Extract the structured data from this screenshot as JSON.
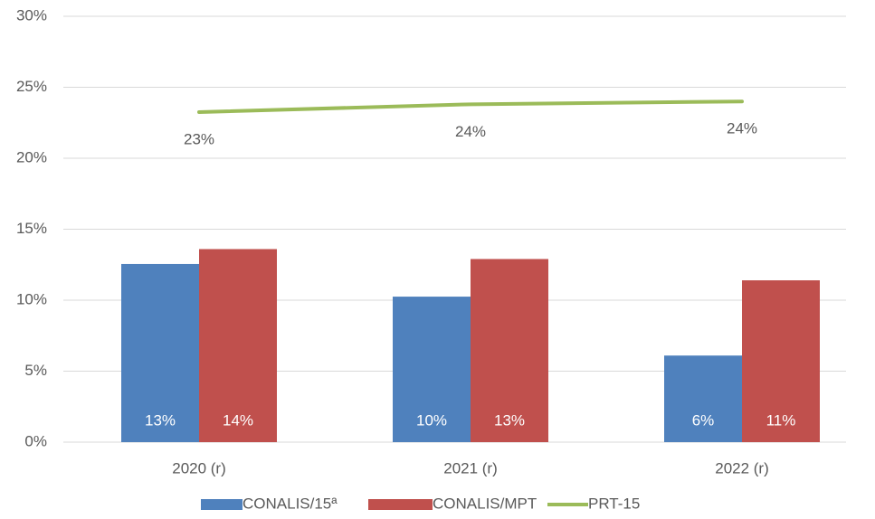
{
  "chart_data": {
    "type": "bar",
    "categories": [
      "2020 (r)",
      "2021 (r)",
      "2022 (r)"
    ],
    "series": [
      {
        "name": "CONALIS/15ª",
        "color": "#4f81bd",
        "values": [
          12.55,
          10.25,
          6.1
        ],
        "value_labels": [
          "13%",
          "10%",
          "6%"
        ]
      },
      {
        "name": "CONALIS/MPT",
        "color": "#c0504d",
        "values": [
          13.6,
          12.9,
          11.4
        ],
        "value_labels": [
          "14%",
          "13%",
          "11%"
        ]
      },
      {
        "name": "PRT-15",
        "color": "#9bbb59",
        "type": "line",
        "values": [
          23.25,
          23.8,
          24.0
        ],
        "value_labels": [
          "23%",
          "24%",
          "24%"
        ]
      }
    ],
    "ylim": [
      0,
      30
    ],
    "yticks": [
      {
        "value": 0,
        "label": "0%"
      },
      {
        "value": 5,
        "label": "5%"
      },
      {
        "value": 10,
        "label": "10%"
      },
      {
        "value": 15,
        "label": "15%"
      },
      {
        "value": 20,
        "label": "20%"
      },
      {
        "value": 25,
        "label": "25%"
      },
      {
        "value": 30,
        "label": "30%"
      }
    ],
    "grid": true,
    "legend": "bottom"
  }
}
